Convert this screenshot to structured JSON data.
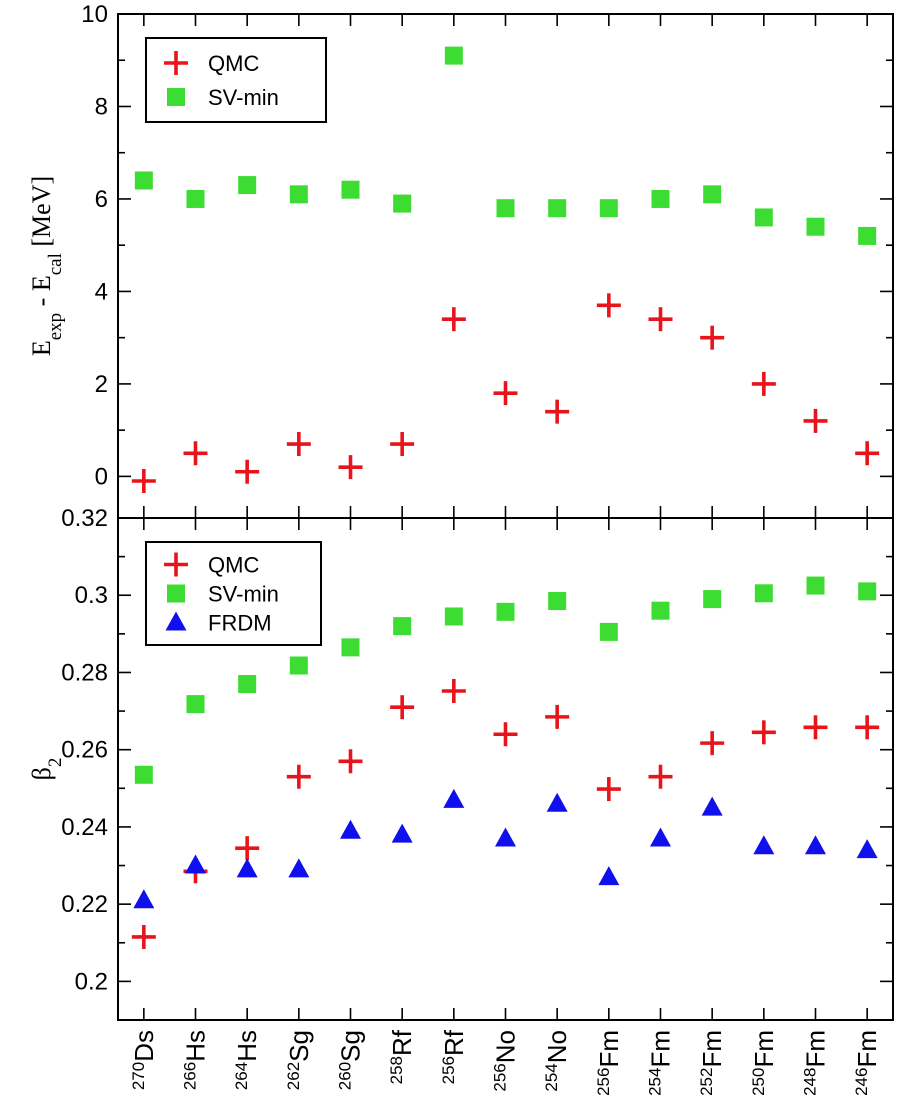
{
  "chart_data": [
    {
      "type": "scatter",
      "panel": "top",
      "categories_key": "shared",
      "ylabel": {
        "main": "E",
        "sub1": "exp",
        "mid": " - E",
        "sub2": "cal",
        "tail": " [MeV]"
      },
      "ylim": [
        -0.9,
        10
      ],
      "yticks": [
        0,
        2,
        4,
        6,
        8,
        10
      ],
      "yticklabels": [
        "0",
        "2",
        "4",
        "6",
        "8",
        "10"
      ],
      "legend": {
        "placement": "top-left",
        "entries": [
          "QMC",
          "SV-min"
        ]
      },
      "series": [
        {
          "name": "QMC",
          "marker": "plus",
          "color": "#e8141b",
          "values": [
            -0.1,
            0.5,
            0.1,
            0.7,
            0.2,
            0.7,
            3.4,
            1.8,
            1.4,
            3.7,
            3.4,
            3.0,
            2.0,
            1.2,
            0.5
          ]
        },
        {
          "name": "SV-min",
          "marker": "square",
          "color": "#3cdc32",
          "values": [
            6.4,
            6.0,
            6.3,
            6.1,
            6.2,
            5.9,
            9.1,
            5.8,
            5.8,
            5.8,
            6.0,
            6.1,
            5.6,
            5.4,
            5.2
          ]
        }
      ]
    },
    {
      "type": "scatter",
      "panel": "bottom",
      "ylabel": {
        "main": "β",
        "sub1": "2"
      },
      "ylim": [
        0.19,
        0.32
      ],
      "yticks": [
        0.2,
        0.22,
        0.24,
        0.26,
        0.28,
        0.3,
        0.32
      ],
      "yticklabels": [
        "0.2",
        "0.22",
        "0.24",
        "0.26",
        "0.28",
        "0.3",
        "0.32"
      ],
      "legend": {
        "placement": "top-left",
        "entries": [
          "QMC",
          "SV-min",
          "FRDM"
        ]
      },
      "series": [
        {
          "name": "QMC",
          "marker": "plus",
          "color": "#e8141b",
          "values": [
            0.2115,
            0.2285,
            0.2345,
            0.253,
            0.257,
            0.271,
            0.2752,
            0.264,
            0.2685,
            0.2498,
            0.253,
            0.2617,
            0.2645,
            0.2658,
            0.2658
          ]
        },
        {
          "name": "SV-min",
          "marker": "square",
          "color": "#3cdc32",
          "values": [
            0.2535,
            0.2718,
            0.277,
            0.2818,
            0.2865,
            0.292,
            0.2945,
            0.2957,
            0.2985,
            0.2905,
            0.296,
            0.299,
            0.3005,
            0.3025,
            0.301
          ]
        },
        {
          "name": "FRDM",
          "marker": "triangle",
          "color": "#1010ee",
          "values": [
            0.221,
            0.23,
            0.229,
            0.229,
            0.239,
            0.238,
            0.247,
            0.237,
            0.246,
            0.227,
            0.237,
            0.245,
            0.235,
            0.235,
            0.234
          ]
        }
      ]
    }
  ],
  "categories": [
    {
      "mass": "270",
      "el": "Ds"
    },
    {
      "mass": "266",
      "el": "Hs"
    },
    {
      "mass": "264",
      "el": "Hs"
    },
    {
      "mass": "262",
      "el": "Sg"
    },
    {
      "mass": "260",
      "el": "Sg"
    },
    {
      "mass": "258",
      "el": "Rf"
    },
    {
      "mass": "256",
      "el": "Rf"
    },
    {
      "mass": "256",
      "el": "No"
    },
    {
      "mass": "254",
      "el": "No"
    },
    {
      "mass": "256",
      "el": "Fm"
    },
    {
      "mass": "254",
      "el": "Fm"
    },
    {
      "mass": "252",
      "el": "Fm"
    },
    {
      "mass": "250",
      "el": "Fm"
    },
    {
      "mass": "248",
      "el": "Fm"
    },
    {
      "mass": "246",
      "el": "Fm"
    }
  ]
}
